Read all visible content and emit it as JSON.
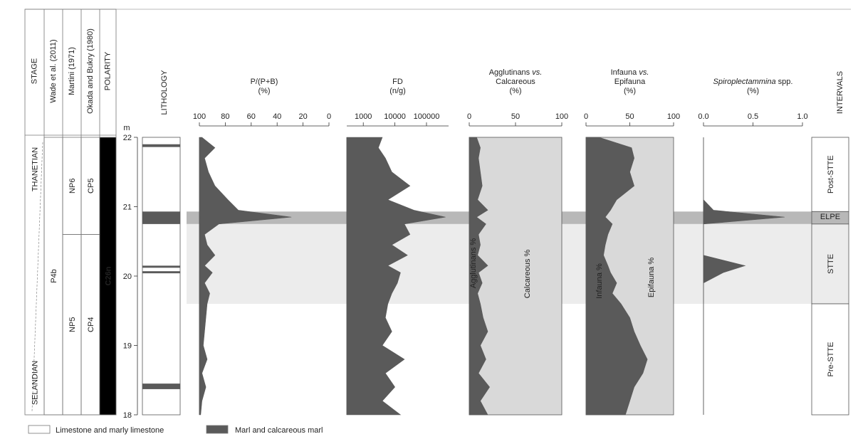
{
  "depth_axis": {
    "label": "m",
    "lim": [
      18,
      22
    ],
    "ticks": [
      18,
      19,
      20,
      21,
      22
    ]
  },
  "stratigraphy": [
    {
      "header": "STAGE",
      "units": [
        {
          "label": "THANETIAN"
        },
        {
          "label": "SELANDIAN"
        }
      ]
    },
    {
      "header": "Wade et al. (2011)",
      "units": [
        {
          "label": "P4b",
          "top": 22,
          "base": 18
        }
      ]
    },
    {
      "header": "Martini (1971)",
      "units": [
        {
          "label": "NP6",
          "top": 22,
          "base": 20.6
        },
        {
          "label": "NP5",
          "top": 20.6,
          "base": 18
        }
      ]
    },
    {
      "header": "Okada and Bukry (1980)",
      "units": [
        {
          "label": "CP5",
          "top": 22,
          "base": 20.6
        },
        {
          "label": "CP4",
          "top": 20.6,
          "base": 18
        }
      ]
    },
    {
      "header": "POLARITY",
      "units": [
        {
          "label": "C26n",
          "top": 22,
          "base": 18,
          "color": "#000000"
        }
      ]
    }
  ],
  "lithology": {
    "header": "LITHOLOGY",
    "color": "#5a5a5a",
    "beds": [
      {
        "top": 21.9,
        "base": 21.86
      },
      {
        "top": 20.93,
        "base": 20.75
      },
      {
        "top": 20.15,
        "base": 20.12
      },
      {
        "top": 20.07,
        "base": 20.04
      },
      {
        "top": 18.45,
        "base": 18.37
      }
    ]
  },
  "intervals": {
    "header": "INTERVALS",
    "units": [
      {
        "label": "Post-STTE",
        "top": 22,
        "base": 20.93
      },
      {
        "label": "ELPE",
        "top": 20.93,
        "base": 20.75,
        "color": "#b8b8b8"
      },
      {
        "label": "STTE",
        "top": 20.75,
        "base": 19.6,
        "color": "#ececec"
      },
      {
        "label": "Pre-STTE",
        "top": 19.6,
        "base": 18
      }
    ]
  },
  "legend": [
    {
      "label": "Limestone and marly limestone",
      "color": "#ffffff"
    },
    {
      "label": "Marl and calcareous marl",
      "color": "#5a5a5a"
    }
  ],
  "chart_data": [
    {
      "type": "area",
      "title": [
        [
          {
            "text": "P/(P+B)"
          }
        ],
        [
          {
            "text": "(%)"
          }
        ]
      ],
      "x": [
        22,
        21.85,
        21.7,
        21.5,
        21.3,
        21.1,
        20.95,
        20.85,
        20.75,
        20.6,
        20.45,
        20.3,
        20.15,
        20.05,
        19.9,
        19.75,
        19.6,
        19.4,
        19.2,
        19,
        18.8,
        18.6,
        18.4,
        18.2,
        18
      ],
      "values": [
        98,
        88,
        96,
        93,
        88,
        78,
        70,
        29,
        85,
        96,
        94,
        88,
        96,
        90,
        96,
        92,
        94,
        95,
        96,
        97,
        94,
        98,
        95,
        98,
        99
      ],
      "color": "#5a5a5a",
      "ylim": [
        100,
        0
      ],
      "yticks": [
        100,
        80,
        60,
        40,
        20,
        0
      ]
    },
    {
      "type": "area",
      "title": [
        [
          {
            "text": "FD"
          }
        ],
        [
          {
            "text": "(n/g)"
          }
        ]
      ],
      "log_scale": true,
      "x": [
        22,
        21.85,
        21.7,
        21.5,
        21.3,
        21.1,
        20.95,
        20.85,
        20.75,
        20.6,
        20.45,
        20.3,
        20.15,
        20.05,
        19.9,
        19.75,
        19.6,
        19.4,
        19.2,
        19,
        18.8,
        18.6,
        18.4,
        18.2,
        18
      ],
      "values": [
        4000,
        3000,
        5000,
        8000,
        30000,
        6000,
        40000,
        400000,
        20000,
        30000,
        8000,
        25000,
        6000,
        15000,
        12000,
        8000,
        6000,
        5000,
        8000,
        4000,
        20000,
        5000,
        10000,
        4000,
        15000
      ],
      "color": "#5a5a5a",
      "ylim": [
        300,
        500000
      ],
      "yticks": [
        1000,
        10000,
        100000
      ]
    },
    {
      "type": "area",
      "title": [
        [
          {
            "text": "Agglutinans "
          },
          {
            "text": "vs.",
            "italic": true
          }
        ],
        [
          {
            "text": "Calcareous"
          }
        ],
        [
          {
            "text": "(%)"
          }
        ]
      ],
      "annotations": [
        "Agglutinans %",
        "Calcareous %"
      ],
      "background": "#d9d9d9",
      "x": [
        22,
        21.85,
        21.7,
        21.5,
        21.3,
        21.1,
        20.95,
        20.85,
        20.75,
        20.6,
        20.45,
        20.3,
        20.15,
        20.05,
        19.9,
        19.75,
        19.6,
        19.4,
        19.2,
        19,
        18.8,
        18.6,
        18.4,
        18.2,
        18
      ],
      "values": [
        8,
        12,
        10,
        12,
        14,
        9,
        20,
        8,
        18,
        10,
        12,
        9,
        20,
        10,
        14,
        9,
        12,
        15,
        20,
        12,
        18,
        10,
        22,
        12,
        20
      ],
      "color": "#5a5a5a",
      "ylim": [
        0,
        100
      ],
      "yticks": [
        0,
        50,
        100
      ]
    },
    {
      "type": "area",
      "title": [
        [
          {
            "text": "Infauna "
          },
          {
            "text": "vs.",
            "italic": true
          }
        ],
        [
          {
            "text": "Epifauna"
          }
        ],
        [
          {
            "text": "(%)"
          }
        ]
      ],
      "annotations": [
        "Infauna %",
        "Epifauna %"
      ],
      "background": "#d9d9d9",
      "x": [
        22,
        21.85,
        21.7,
        21.5,
        21.3,
        21.1,
        20.95,
        20.85,
        20.75,
        20.6,
        20.45,
        20.3,
        20.15,
        20.05,
        19.9,
        19.75,
        19.6,
        19.4,
        19.2,
        19,
        18.8,
        18.6,
        18.4,
        18.2,
        18
      ],
      "values": [
        15,
        52,
        55,
        50,
        55,
        35,
        28,
        22,
        30,
        25,
        22,
        20,
        25,
        28,
        35,
        30,
        40,
        50,
        55,
        62,
        70,
        65,
        55,
        50,
        45
      ],
      "color": "#5a5a5a",
      "ylim": [
        0,
        100
      ],
      "yticks": [
        0,
        50,
        100
      ]
    },
    {
      "type": "area",
      "title": [
        [
          {
            "text": "Spiroplectammina",
            "italic": true
          },
          {
            "text": " spp."
          }
        ],
        [
          {
            "text": "(%)"
          }
        ]
      ],
      "x": [
        22,
        21.85,
        21.7,
        21.5,
        21.3,
        21.1,
        20.95,
        20.85,
        20.75,
        20.6,
        20.45,
        20.3,
        20.15,
        20.05,
        19.9,
        19.75,
        19.6,
        19.4,
        19.2,
        19,
        18.8,
        18.6,
        18.4,
        18.2,
        18
      ],
      "values": [
        0,
        0,
        0,
        0,
        0,
        0,
        0.1,
        0.82,
        0,
        0,
        0,
        0,
        0.42,
        0.2,
        0,
        0,
        0,
        0,
        0,
        0,
        0,
        0,
        0,
        0,
        0
      ],
      "color": "#5a5a5a",
      "ylim": [
        0,
        1
      ],
      "yticks": [
        {
          "value": 0,
          "label": "0.0"
        },
        0.5,
        {
          "value": 1,
          "label": "1.0"
        }
      ]
    }
  ]
}
